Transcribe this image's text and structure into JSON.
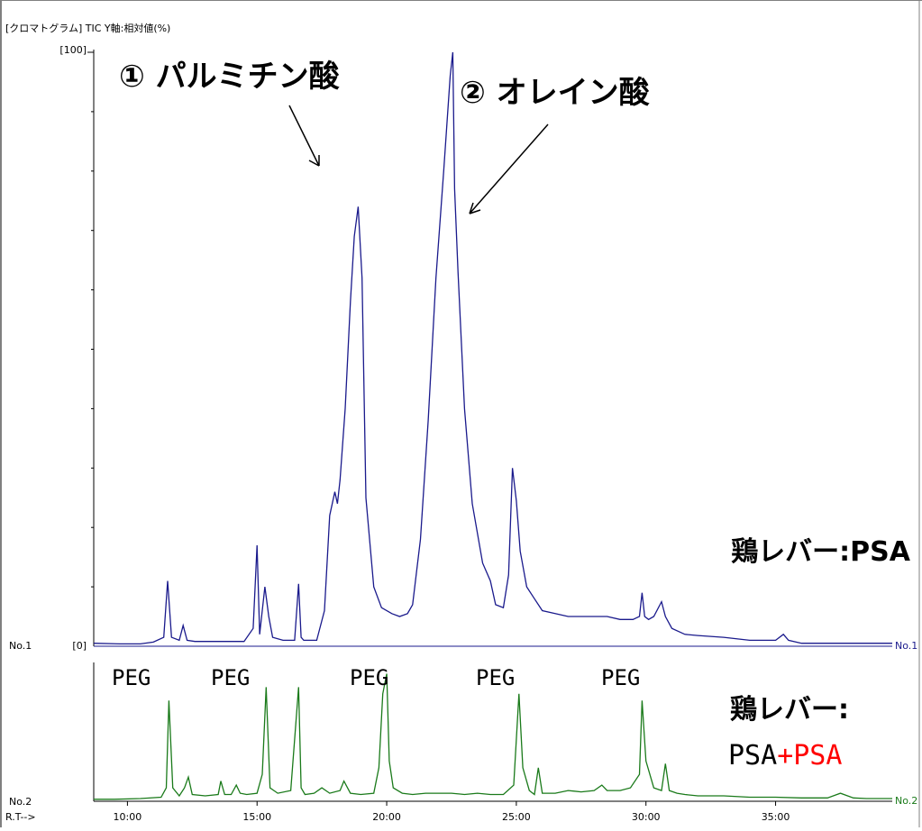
{
  "header": "[クロマトグラム] TIC Y軸:相対値(%)",
  "ytick_top": "[100]",
  "ytick_zero": "[0]",
  "trace1_label_left": "No.1",
  "trace1_label_right": "No.1",
  "trace2_label_left": "No.2",
  "trace2_label_right": "No.2",
  "x_axis_label": "R.T-->",
  "annotations": {
    "peak1": "① パルミチン酸",
    "peak2": "② オレイン酸",
    "peg": [
      "PEG",
      "PEG",
      "PEG",
      "PEG",
      "PEG"
    ],
    "sample1": "鶏レバー:PSA",
    "sample2_line1": "鶏レバー:",
    "sample2_line2_a": "PSA",
    "sample2_line2_b": "+PSA"
  },
  "colors": {
    "trace1": "#1a1a8c",
    "trace2": "#1a7a1a",
    "accent": "#ff0000",
    "axis": "#000000"
  },
  "chart_data": {
    "type": "line",
    "x_unit": "retention time (min)",
    "xlim": [
      8.7,
      39.5
    ],
    "x_ticks": [
      "10:00",
      "15:00",
      "20:00",
      "25:00",
      "30:00",
      "35:00"
    ],
    "x_tick_values": [
      10,
      15,
      20,
      25,
      30,
      35
    ],
    "series": [
      {
        "name": "No.1",
        "ylim": [
          0,
          100
        ],
        "x": [
          8.7,
          9.7,
          10.5,
          11.0,
          11.4,
          11.55,
          11.7,
          12.0,
          12.15,
          12.3,
          12.6,
          13.5,
          14.5,
          14.85,
          15.0,
          15.1,
          15.3,
          15.45,
          15.6,
          16.0,
          16.45,
          16.6,
          16.7,
          16.8,
          17.3,
          17.6,
          17.8,
          18.0,
          18.1,
          18.2,
          18.4,
          18.6,
          18.75,
          18.9,
          19.05,
          19.2,
          19.5,
          19.8,
          20.2,
          20.5,
          20.8,
          21.0,
          21.3,
          21.6,
          21.9,
          22.2,
          22.45,
          22.55,
          22.62,
          22.75,
          23.0,
          23.3,
          23.7,
          24.0,
          24.2,
          24.5,
          24.7,
          24.85,
          25.0,
          25.15,
          25.4,
          25.7,
          26.0,
          26.5,
          27.0,
          27.5,
          28.0,
          28.5,
          29.0,
          29.5,
          29.75,
          29.85,
          29.95,
          30.1,
          30.3,
          30.6,
          30.75,
          31.0,
          31.5,
          32.0,
          33.0,
          34.0,
          35.0,
          35.3,
          35.5,
          36.0,
          37.0,
          38.0,
          39.0,
          39.5
        ],
        "y": [
          0.5,
          0.4,
          0.4,
          0.7,
          1.5,
          11.0,
          1.5,
          1.0,
          3.5,
          1.0,
          0.8,
          0.8,
          0.8,
          3.0,
          17.0,
          2.0,
          10.0,
          5.0,
          1.5,
          1.0,
          1.0,
          10.5,
          1.5,
          1.0,
          1.0,
          6.0,
          22.0,
          26.0,
          24.0,
          28.0,
          40.0,
          58.0,
          69.0,
          74.0,
          62.0,
          25.0,
          10.0,
          6.5,
          5.5,
          5.0,
          5.5,
          7.0,
          18.0,
          38.0,
          62.0,
          80.0,
          96.0,
          100.0,
          77.0,
          63.0,
          40.0,
          24.0,
          14.0,
          11.0,
          7.0,
          6.5,
          12.0,
          30.0,
          24.5,
          16.0,
          10.0,
          8.0,
          6.0,
          5.5,
          5.0,
          5.0,
          5.0,
          5.0,
          4.5,
          4.5,
          5.0,
          9.0,
          5.0,
          4.5,
          5.0,
          7.5,
          5.0,
          3.0,
          2.0,
          1.8,
          1.5,
          1.0,
          1.0,
          2.0,
          1.0,
          0.5,
          0.5,
          0.5,
          0.5,
          0.5
        ]
      },
      {
        "name": "No.2",
        "ylim": [
          0,
          100
        ],
        "x": [
          8.7,
          9.5,
          10.5,
          11.3,
          11.5,
          11.6,
          11.75,
          12.0,
          12.2,
          12.35,
          12.5,
          13.0,
          13.5,
          13.6,
          13.75,
          14.0,
          14.2,
          14.35,
          14.6,
          15.0,
          15.2,
          15.35,
          15.5,
          15.8,
          16.3,
          16.6,
          16.7,
          16.85,
          17.2,
          17.5,
          17.8,
          18.2,
          18.35,
          18.6,
          19.0,
          19.5,
          19.7,
          19.85,
          20.0,
          20.1,
          20.25,
          20.6,
          21.0,
          21.5,
          22.0,
          22.5,
          23.0,
          23.5,
          24.0,
          24.5,
          24.9,
          25.1,
          25.25,
          25.5,
          25.7,
          25.85,
          26.0,
          26.5,
          27.0,
          27.5,
          28.0,
          28.3,
          28.5,
          29.0,
          29.4,
          29.75,
          29.85,
          30.0,
          30.3,
          30.6,
          30.75,
          30.9,
          31.2,
          31.5,
          32.0,
          33.0,
          34.0,
          35.0,
          36.0,
          37.0,
          37.5,
          38.0,
          38.5,
          39.0,
          39.5
        ],
        "y": [
          1.5,
          1.5,
          2.0,
          3.0,
          10.0,
          75.0,
          10.0,
          4.0,
          10.0,
          18.0,
          5.0,
          4.0,
          5.0,
          15.0,
          5.0,
          5.0,
          12.0,
          6.0,
          5.0,
          6.0,
          20.0,
          85.0,
          10.0,
          6.0,
          8.0,
          85.0,
          10.0,
          5.0,
          6.0,
          10.0,
          6.0,
          8.0,
          15.0,
          6.0,
          5.0,
          6.0,
          25.0,
          80.0,
          95.0,
          30.0,
          10.0,
          6.0,
          5.0,
          6.0,
          6.0,
          6.0,
          5.0,
          6.0,
          5.0,
          5.0,
          12.0,
          80.0,
          25.0,
          8.0,
          5.0,
          25.0,
          6.0,
          6.0,
          8.0,
          7.0,
          8.0,
          12.0,
          8.0,
          8.0,
          10.0,
          20.0,
          75.0,
          30.0,
          10.0,
          8.0,
          28.0,
          8.0,
          6.0,
          5.0,
          4.0,
          4.0,
          3.0,
          3.0,
          2.5,
          2.5,
          6.0,
          2.5,
          2.0,
          2.0,
          2.0
        ]
      }
    ]
  }
}
